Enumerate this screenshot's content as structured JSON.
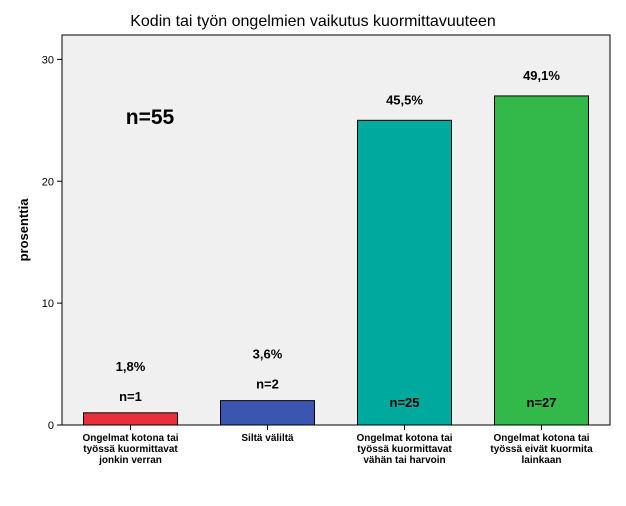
{
  "chart_data": {
    "type": "bar",
    "title": "Kodin tai työn ongelmien vaikutus kuormittavuuteen",
    "ylabel": "prosenttia",
    "xlabel": "",
    "ylim": [
      0,
      32
    ],
    "yticks": [
      "0",
      "10",
      "20",
      "30"
    ],
    "annotation": "n=55",
    "categories": [
      [
        "Ongelmat kotona tai",
        "työssä kuormittavat",
        "jonkin verran"
      ],
      [
        "Siltä väliltä"
      ],
      [
        "Ongelmat kotona tai",
        "työssä kuormittavat",
        "vähän tai harvoin"
      ],
      [
        "Ongelmat kotona tai",
        "työssä eivät kuormita",
        "lainkaan"
      ]
    ],
    "values": [
      1,
      2,
      25,
      27
    ],
    "percent_labels": [
      "1,8%",
      "3,6%",
      "45,5%",
      "49,1%"
    ],
    "count_labels": [
      "n=1",
      "n=2",
      "n=25",
      "n=27"
    ],
    "colors": [
      "#e8303a",
      "#3a56b0",
      "#00a99d",
      "#32b94a"
    ],
    "plot_background": "#f0f0f0",
    "grid": false,
    "legend": "none"
  }
}
